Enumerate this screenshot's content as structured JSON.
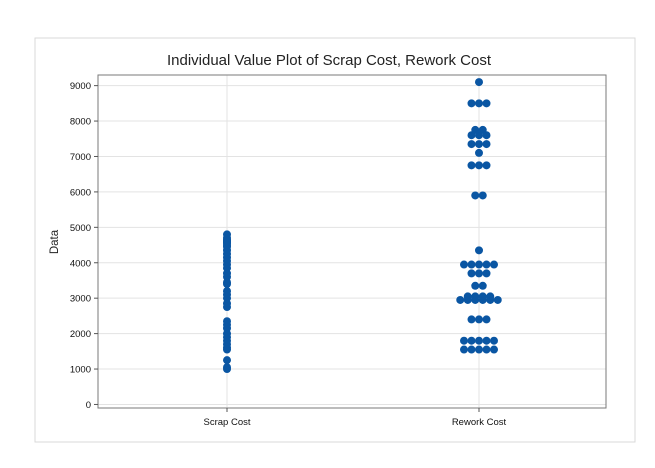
{
  "chart_data": {
    "type": "scatter",
    "subtype": "individual value plot",
    "title": "Individual Value Plot of Scrap Cost, Rework Cost",
    "xlabel": "",
    "ylabel": "Data",
    "categories": [
      "Scrap Cost",
      "Rework Cost"
    ],
    "ylim": [
      -100,
      9300
    ],
    "yticks": [
      0,
      1000,
      2000,
      3000,
      4000,
      5000,
      6000,
      7000,
      8000,
      9000
    ],
    "grid": true,
    "legend": "none",
    "colors": {
      "point": "#0a56a3",
      "plot_border": "#7a7a7a",
      "grid": "#e3e3e3",
      "frame": "#d9d9d9"
    },
    "series": [
      {
        "category": "Scrap Cost",
        "values": [
          1000,
          1050,
          1250,
          1550,
          1600,
          1700,
          1800,
          1900,
          2000,
          2150,
          2250,
          2350,
          2750,
          2850,
          3000,
          3100,
          3200,
          3400,
          3450,
          3600,
          3700,
          3850,
          3950,
          4050,
          4150,
          4250,
          4350,
          4450,
          4500,
          4550,
          4580,
          4600,
          4620,
          4650,
          4700,
          4800
        ]
      },
      {
        "category": "Rework Cost",
        "values": [
          1550,
          1550,
          1550,
          1550,
          1550,
          1800,
          1800,
          1800,
          1800,
          1800,
          2400,
          2400,
          2400,
          2950,
          2950,
          2950,
          2950,
          2950,
          2950,
          3050,
          3050,
          3050,
          3050,
          3350,
          3350,
          3700,
          3700,
          3700,
          3950,
          3950,
          3950,
          3950,
          3950,
          4350,
          5900,
          5900,
          6750,
          6750,
          6750,
          7100,
          7350,
          7350,
          7350,
          7600,
          7600,
          7600,
          7750,
          7750,
          8500,
          8500,
          8500,
          9100
        ]
      }
    ]
  }
}
